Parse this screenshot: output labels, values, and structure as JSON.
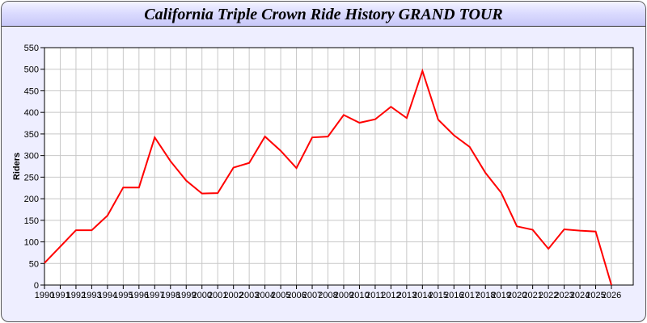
{
  "chart_data": {
    "type": "line",
    "title": "California Triple Crown Ride History GRAND TOUR",
    "xlabel": "",
    "ylabel": "Riders",
    "ylim": [
      0,
      550
    ],
    "yticks": [
      0,
      50,
      100,
      150,
      200,
      250,
      300,
      350,
      400,
      450,
      500,
      550
    ],
    "grid": true,
    "line_color": "#ff0000",
    "x": [
      1990,
      1991,
      1992,
      1993,
      1994,
      1995,
      1996,
      1997,
      1998,
      1999,
      2000,
      2001,
      2002,
      2003,
      2004,
      2005,
      2006,
      2007,
      2008,
      2009,
      2010,
      2011,
      2012,
      2013,
      2014,
      2015,
      2016,
      2017,
      2018,
      2019,
      2020,
      2021,
      2022,
      2023,
      2024,
      2025,
      2026
    ],
    "values": [
      51,
      89,
      127,
      127,
      161,
      226,
      226,
      342,
      287,
      242,
      212,
      213,
      272,
      283,
      344,
      311,
      271,
      342,
      344,
      394,
      376,
      384,
      413,
      387,
      496,
      383,
      347,
      320,
      260,
      214,
      136,
      128,
      84,
      129,
      126,
      124,
      0
    ]
  }
}
